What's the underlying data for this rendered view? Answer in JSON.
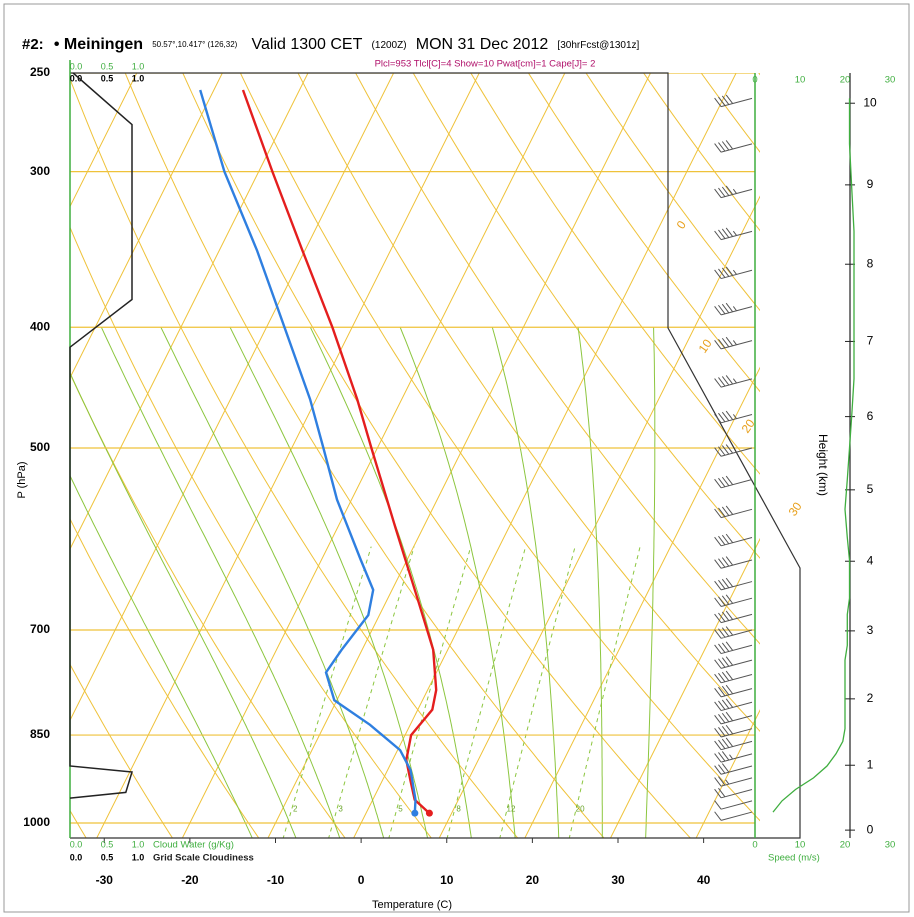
{
  "chart_data": {
    "type": "skewt",
    "title": "#2:",
    "station": "• Meiningen",
    "location": "50.57°,10.417° (126,32)",
    "valid": "Valid 1300 CET",
    "utc": "(1200Z)",
    "date": "MON 31 Dec 2012",
    "forecast": "[30hrFcst@1301z]",
    "subtitle": "Plcl=953 Tlcl[C]=4 Show=10 Pwat[cm]=1 Cape[J]= 2",
    "ylabel": "P (hPa)",
    "xlabel": "Temperature (C)",
    "y2label": "Height (km)",
    "speed_label": "Speed (m/s)",
    "cloudwater_label": "Cloud Water (g/Kg)",
    "cloudiness_label": "Grid Scale Cloudiness",
    "log_y": true,
    "ylim": [
      1000,
      250
    ],
    "yticks": [
      250,
      300,
      400,
      500,
      700,
      850,
      1000
    ],
    "xlim": [
      -34,
      46
    ],
    "xticks": [
      -30,
      -20,
      -10,
      0,
      10,
      20,
      30,
      40
    ],
    "y2ticks": [
      0,
      1,
      2,
      3,
      4,
      5,
      6,
      7,
      8,
      9,
      10
    ],
    "speed_lim": [
      0,
      30
    ],
    "speed_ticks": [
      0,
      10,
      20,
      30
    ],
    "cloud_lim": [
      0,
      1
    ],
    "cloud_ticks": [
      {
        "value": 0,
        "label": "0.0"
      },
      {
        "value": 0.5,
        "label": "0.5"
      },
      {
        "value": 1,
        "label": "1.0"
      }
    ],
    "series": [
      {
        "color": "#e41e1e",
        "pressure": [
          258,
          300,
          347,
          400,
          457,
          500,
          582,
          662,
          726,
          782,
          811,
          850,
          890,
          925,
          958,
          982
        ],
        "values": [
          -56.6,
          -48.4,
          -40.3,
          -32.3,
          -25.2,
          -20.7,
          -13.0,
          -6.4,
          -1.7,
          1.0,
          1.7,
          0.7,
          1.6,
          3.3,
          4.9,
          7.4
        ]
      },
      {
        "color": "#2f7fe0",
        "pressure": [
          258,
          300,
          347,
          400,
          457,
          500,
          550,
          615,
          650,
          681,
          726,
          757,
          797,
          834,
          874,
          907,
          958,
          982
        ],
        "values": [
          -61.6,
          -54.0,
          -45.6,
          -37.9,
          -30.7,
          -26.3,
          -21.7,
          -15.4,
          -12.2,
          -11.3,
          -12.4,
          -12.9,
          -10.3,
          -4.7,
          0.3,
          2.7,
          5.0,
          5.7
        ]
      }
    ],
    "wind": {
      "color": "#555555",
      "curve_color": "#3fae3f",
      "direction": 255,
      "pressure": [
        262,
        285,
        310,
        335,
        360,
        385,
        410,
        440,
        470,
        500,
        530,
        560,
        590,
        615,
        640,
        660,
        680,
        700,
        720,
        740,
        760,
        780,
        800,
        820,
        840,
        860,
        880,
        900,
        920,
        940,
        960,
        980
      ],
      "speed": [
        21,
        21,
        21.5,
        22,
        22,
        22,
        22,
        22,
        21.5,
        21,
        20.5,
        20,
        20.5,
        21,
        21,
        21,
        20.5,
        20.5,
        20.5,
        20,
        20,
        20,
        20,
        20,
        20,
        19.5,
        18,
        16,
        13,
        9,
        6,
        4
      ]
    },
    "cloudiness": {
      "color": "#222222",
      "pressure": [
        250,
        275,
        380,
        415,
        900,
        910,
        945,
        955
      ],
      "values": [
        0.05,
        1,
        1,
        0,
        0,
        1,
        0.9,
        0
      ]
    },
    "mixing_ratios": [
      2,
      3,
      5,
      8,
      12,
      20
    ],
    "theta_labels": [
      0,
      10,
      20,
      30
    ]
  }
}
